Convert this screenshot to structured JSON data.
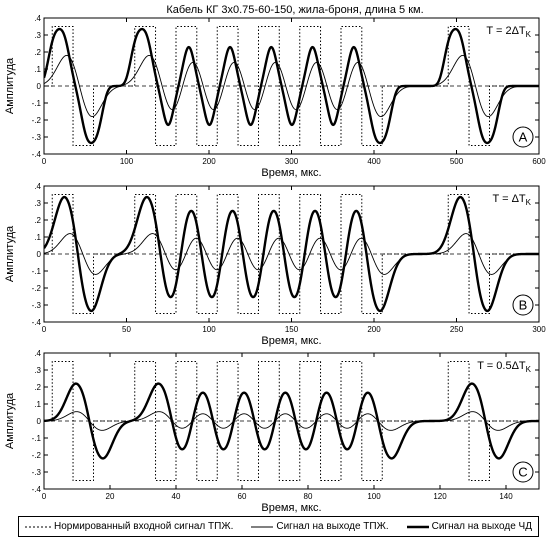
{
  "title": "Кабель КГ 3х0.75-60-150, жила-броня, длина 5 км.",
  "legend": {
    "input": "Нормированный входной сигнал ТПЖ.",
    "tpzh": "Сигнал на выходе ТПЖ.",
    "chd": "Сигнал на выходе  ЧД"
  },
  "chart_data": [
    {
      "type": "line",
      "panel_label": "A",
      "annotation": "T = 2ΔT",
      "annotation_sub": "K",
      "xlabel": "Время,  мкс.",
      "ylabel": "Амплитуда",
      "xlim": [
        0,
        600
      ],
      "ylim": [
        -0.4,
        0.4
      ],
      "xticks": [
        0,
        100,
        200,
        300,
        400,
        500,
        600
      ],
      "yticks": [
        -0.4,
        -0.3,
        -0.2,
        -0.1,
        0,
        0.1,
        0.2,
        0.3,
        0.4
      ],
      "period": 50,
      "bursts": [
        [
          10,
          60
        ],
        [
          110,
          410
        ],
        [
          490,
          540
        ]
      ],
      "input_amplitude": 0.35,
      "series": [
        {
          "name": "Нормированный входной сигнал ТПЖ.",
          "amplitude": 0.35,
          "delay": 0,
          "style": "dotted"
        },
        {
          "name": "Сигнал на выходе ТПЖ.",
          "amplitude": 0.18,
          "delay": 8,
          "style": "thin"
        },
        {
          "name": "Сигнал на выходе  ЧД",
          "amplitude": 0.335,
          "delay": 3,
          "style": "thick"
        }
      ]
    },
    {
      "type": "line",
      "panel_label": "B",
      "annotation": "T = ΔT",
      "annotation_sub": "K",
      "xlabel": "Время,  мкс.",
      "ylabel": "Амплитуда",
      "xlim": [
        0,
        300
      ],
      "ylim": [
        -0.4,
        0.4
      ],
      "xticks": [
        0,
        50,
        100,
        150,
        200,
        250,
        300
      ],
      "yticks": [
        -0.4,
        -0.3,
        -0.2,
        -0.1,
        0,
        0.1,
        0.2,
        0.3,
        0.4
      ],
      "period": 25,
      "bursts": [
        [
          5,
          30
        ],
        [
          55,
          205
        ],
        [
          245,
          270
        ]
      ],
      "input_amplitude": 0.35,
      "series": [
        {
          "name": "Нормированный входной сигнал ТПЖ.",
          "amplitude": 0.35,
          "delay": 0,
          "style": "dotted"
        },
        {
          "name": "Сигнал на выходе ТПЖ.",
          "amplitude": 0.12,
          "delay": 6,
          "style": "thin"
        },
        {
          "name": "Сигнал на выходе  ЧД",
          "amplitude": 0.335,
          "delay": 3,
          "style": "thick"
        }
      ]
    },
    {
      "type": "line",
      "panel_label": "C",
      "annotation": "T = 0.5ΔT",
      "annotation_sub": "K",
      "xlabel": "Время,  мкс.",
      "ylabel": "Амплитуда",
      "xlim": [
        0,
        150
      ],
      "ylim": [
        -0.4,
        0.4
      ],
      "xticks": [
        0,
        20,
        40,
        60,
        80,
        100,
        120,
        140
      ],
      "yticks": [
        -0.4,
        -0.3,
        -0.2,
        -0.1,
        0,
        0.1,
        0.2,
        0.3,
        0.4
      ],
      "period": 12.5,
      "bursts": [
        [
          2.5,
          15
        ],
        [
          27.5,
          102.5
        ],
        [
          122.5,
          135
        ]
      ],
      "input_amplitude": 0.35,
      "series": [
        {
          "name": "Нормированный входной сигнал ТПЖ.",
          "amplitude": 0.35,
          "delay": 0,
          "style": "dotted"
        },
        {
          "name": "Сигнал на выходе ТПЖ.",
          "amplitude": 0.055,
          "delay": 5,
          "style": "thin"
        },
        {
          "name": "Сигнал на выходе  ЧД",
          "amplitude": 0.22,
          "delay": 5,
          "style": "thick"
        }
      ]
    }
  ]
}
